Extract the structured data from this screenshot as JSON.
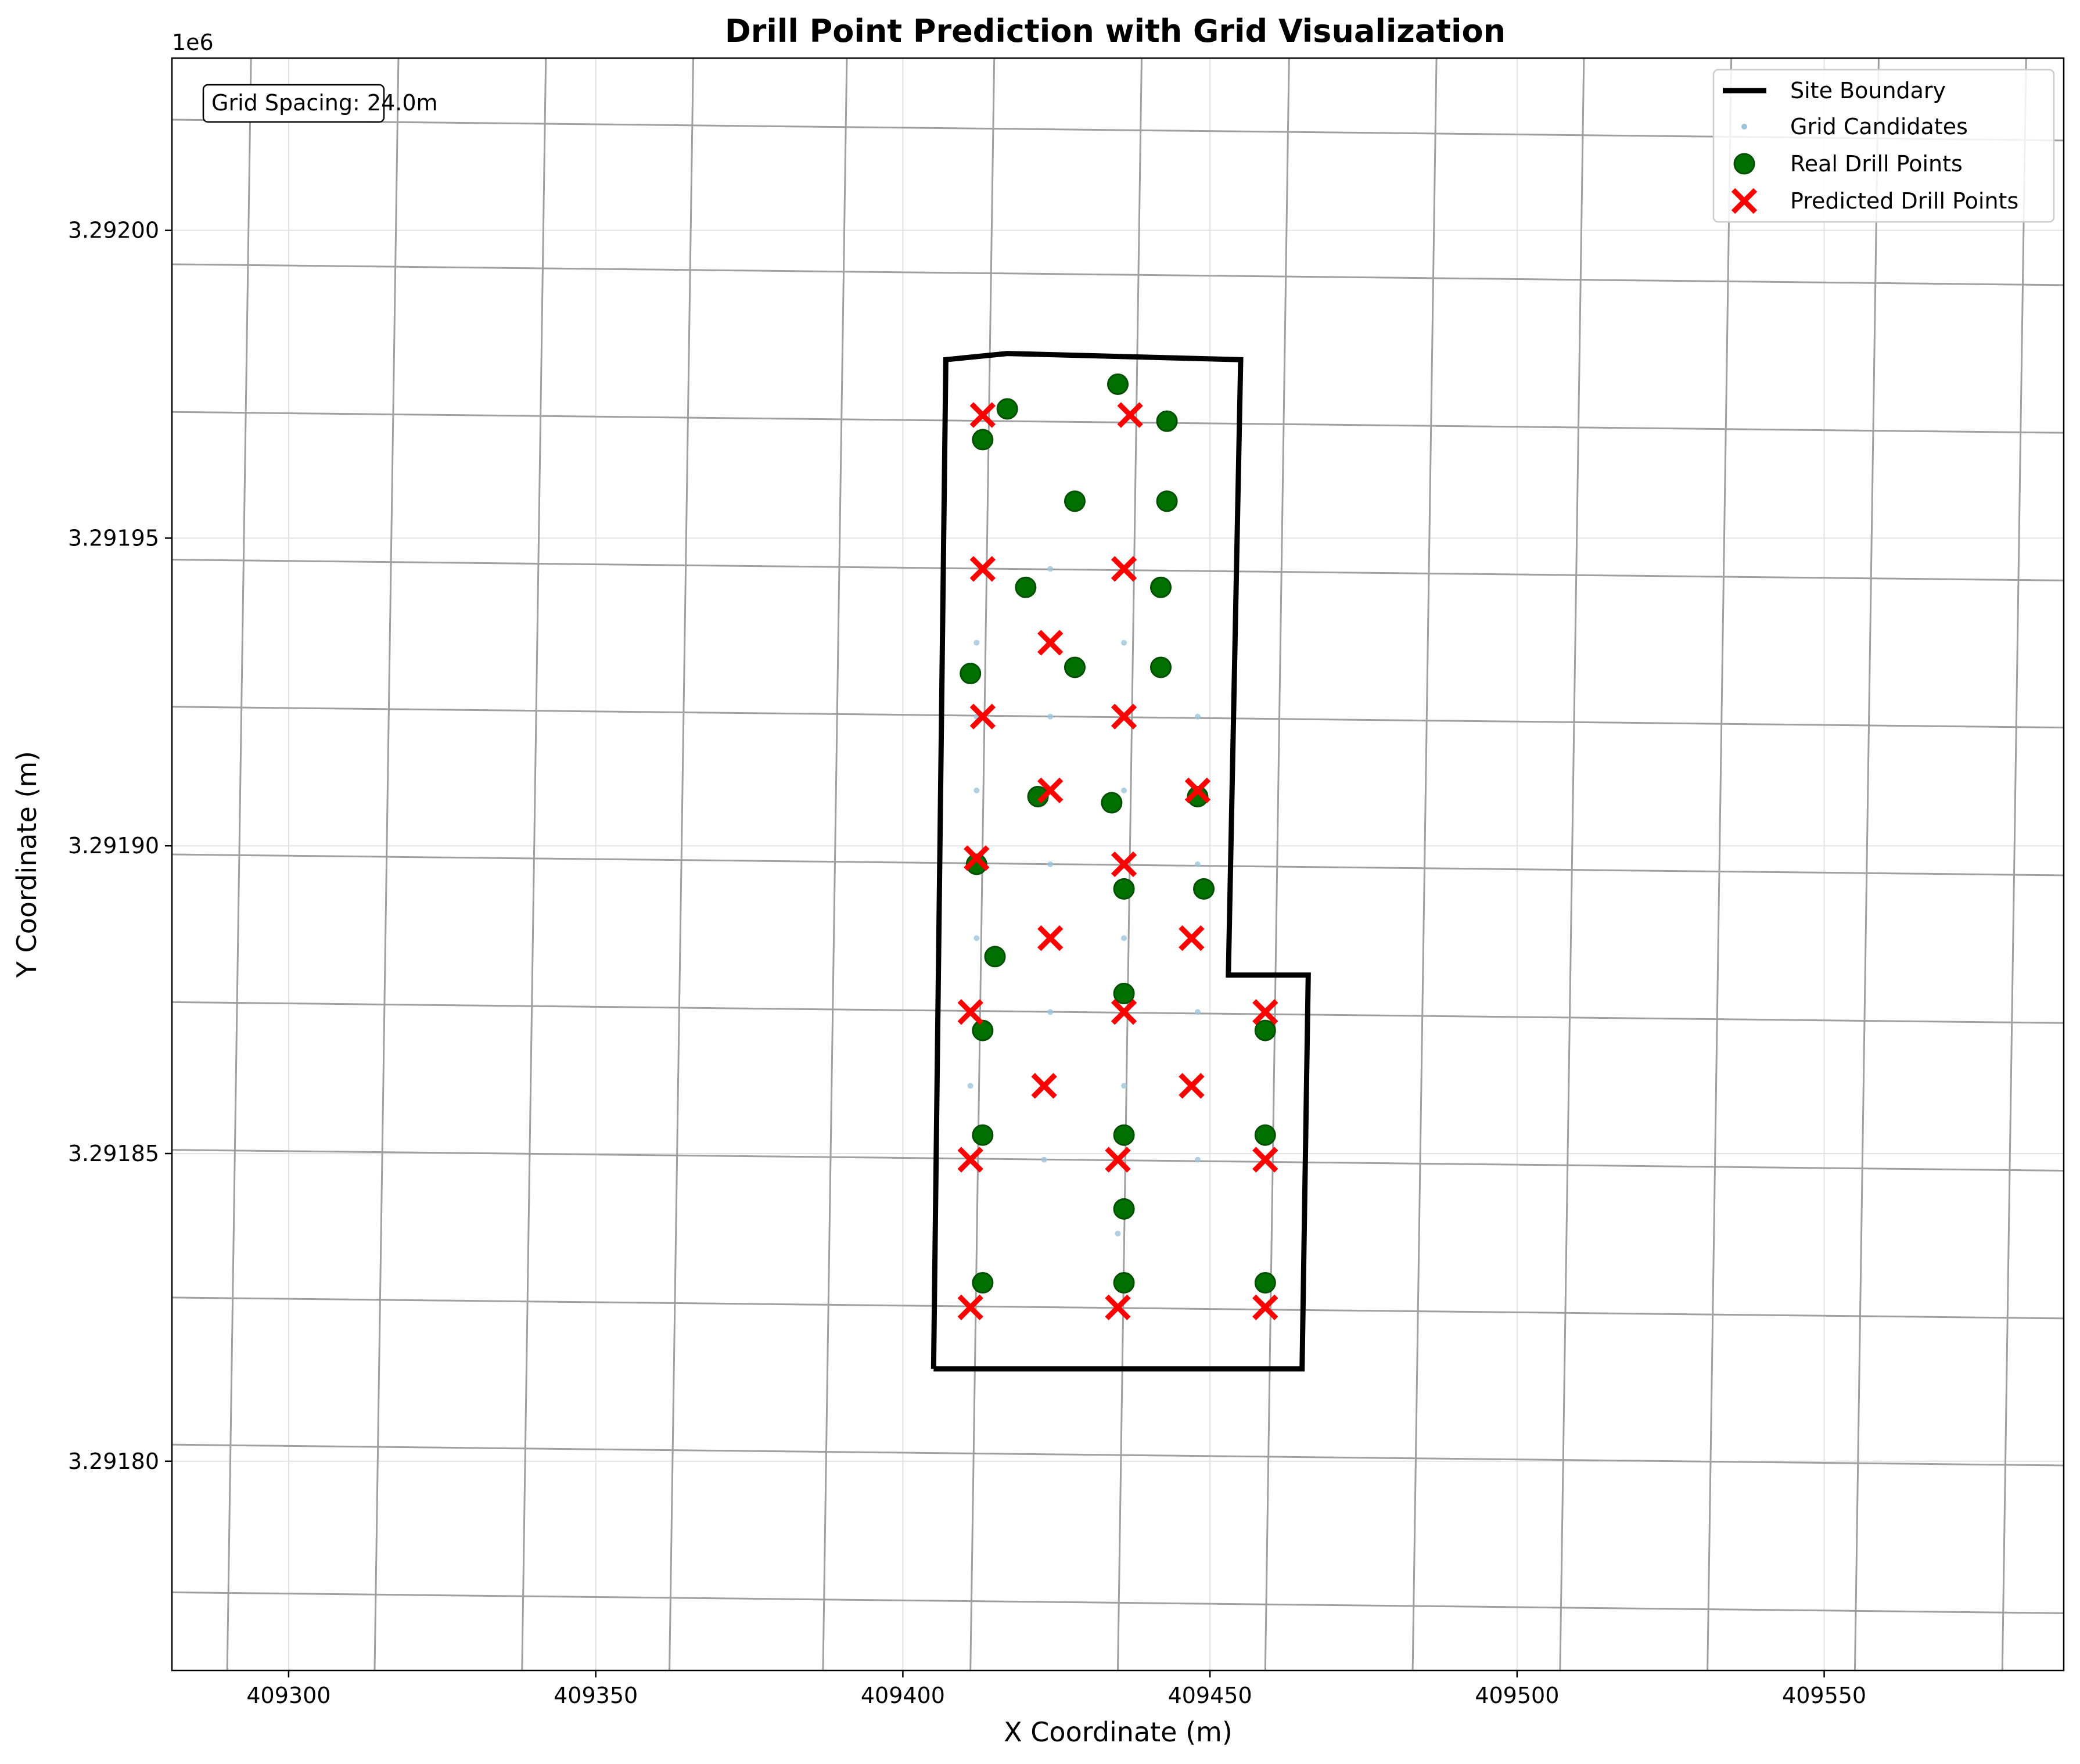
{
  "chart_data": {
    "type": "scatter",
    "title": "Drill Point Prediction with Grid Visualization",
    "xlabel": "X Coordinate (m)",
    "ylabel": "Y Coordinate (m)",
    "xlim": [
      409281,
      409589
    ],
    "ylim": [
      3291766,
      3292028
    ],
    "y_offset_label": "1e6",
    "x_ticks": [
      409300,
      409350,
      409400,
      409450,
      409500,
      409550
    ],
    "x_tick_labels": [
      "409300",
      "409350",
      "409400",
      "409450",
      "409500",
      "409550"
    ],
    "y_ticks": [
      3291800,
      3291850,
      3291900,
      3291950,
      3292000
    ],
    "y_tick_labels": [
      "3.29180",
      "3.29185",
      "3.29190",
      "3.29195",
      "3.29200"
    ],
    "grid": true,
    "legend_position": "top-right",
    "annotation": "Grid Spacing: 24.0m",
    "grid_lines": {
      "horizontal_families_y_at_left": [
        3292018,
        3291994.5,
        3291970.5,
        3291946.5,
        3291922.6,
        3291898.6,
        3291874.6,
        3291850.6,
        3291826.6,
        3291802.7,
        3291778.7
      ],
      "horizontal_slope": -0.011,
      "vertical_families_x_at_bottom": [
        409290,
        409314,
        409338,
        409362,
        409387,
        409411,
        409435,
        409459,
        409483,
        409507,
        409531,
        409555,
        409579
      ],
      "vertical_slope_dx_per_dy": 0.0148
    },
    "series": [
      {
        "name": "Site Boundary",
        "kind": "line",
        "color": "#000000",
        "x": [
          409405,
          409407,
          409417,
          409455,
          409453,
          409466,
          409465,
          409405
        ],
        "y": [
          3291815,
          3291979,
          3291980,
          3291979,
          3291879,
          3291879,
          3291815,
          3291815
        ]
      },
      {
        "name": "Grid Candidates",
        "kind": "scatter",
        "color": "#9ec4d9",
        "x": [
          409424,
          409412,
          409436,
          409412,
          409424,
          409436,
          409448,
          409412,
          409436,
          409424,
          409448,
          409412,
          409436,
          409424,
          409436,
          409448,
          409411,
          409436,
          409411,
          409423,
          409435,
          409448,
          409435
        ],
        "y": [
          3291945,
          3291933,
          3291933,
          3291921,
          3291921,
          3291921,
          3291921,
          3291909,
          3291909,
          3291897,
          3291897,
          3291885,
          3291885,
          3291873,
          3291873,
          3291873,
          3291861,
          3291861,
          3291849,
          3291849,
          3291849,
          3291849,
          3291837
        ]
      },
      {
        "name": "Real Drill Points",
        "kind": "scatter",
        "color": "#007000",
        "x": [
          409435,
          409417,
          409413,
          409443,
          409428,
          409443,
          409420,
          409442,
          409411,
          409428,
          409442,
          409422,
          409434,
          409448,
          409412,
          409436,
          409449,
          409415,
          409436,
          409413,
          409459,
          409413,
          409436,
          409459,
          409436,
          409413,
          409436,
          409459
        ],
        "y": [
          3291975,
          3291971,
          3291966,
          3291969,
          3291956,
          3291956,
          3291942,
          3291942,
          3291928,
          3291929,
          3291929,
          3291908,
          3291907,
          3291908,
          3291897,
          3291893,
          3291893,
          3291882,
          3291876,
          3291870,
          3291870,
          3291853,
          3291853,
          3291853,
          3291841,
          3291829,
          3291829,
          3291829
        ]
      },
      {
        "name": "Predicted Drill Points",
        "kind": "scatter",
        "color": "#ff0000",
        "x": [
          409413,
          409437,
          409413,
          409436,
          409424,
          409413,
          409436,
          409424,
          409448,
          409412,
          409436,
          409424,
          409447,
          409411,
          409436,
          409459,
          409423,
          409447,
          409411,
          409435,
          409459,
          409411,
          409435,
          409459
        ],
        "y": [
          3291970,
          3291970,
          3291945,
          3291945,
          3291933,
          3291921,
          3291921,
          3291909,
          3291909,
          3291898,
          3291897,
          3291885,
          3291885,
          3291873,
          3291873,
          3291873,
          3291861,
          3291861,
          3291849,
          3291849,
          3291849,
          3291825,
          3291825,
          3291825
        ]
      }
    ]
  }
}
